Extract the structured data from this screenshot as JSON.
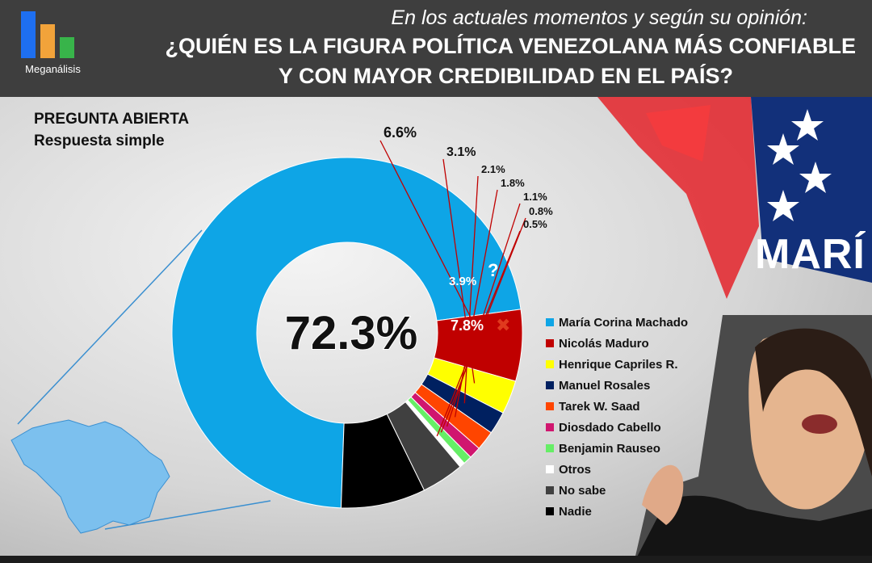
{
  "header": {
    "logo_text": "Meganálisis",
    "subtitle": "En los actuales momentos y según su opinión:",
    "title_line1": "¿QUIÉN ES LA FIGURA POLÍTICA VENEZOLANA MÁS CONFIABLE",
    "title_line2": "Y CON MAYOR CREDIBILIDAD EN EL PAÍS?"
  },
  "note": {
    "line1": "PREGUNTA  ABIERTA",
    "line2": "Respuesta simple"
  },
  "banner_text": "MARÍ",
  "chart_data": {
    "type": "pie",
    "categories": [
      "María Corina Machado",
      "Nicolás Maduro",
      "Henrique Capriles R.",
      "Manuel Rosales",
      "Tarek W. Saad",
      "Diosdado Cabello",
      "Benjamin Rauseo",
      "Otros",
      "No sabe",
      "Nadie"
    ],
    "values": [
      72.3,
      6.6,
      3.1,
      2.1,
      1.8,
      1.1,
      0.8,
      0.5,
      3.9,
      7.8
    ],
    "labels": [
      "72.3%",
      "6.6%",
      "3.1%",
      "2.1%",
      "1.8%",
      "1.1%",
      "0.8%",
      "0.5%",
      "3.9%",
      "7.8%"
    ],
    "colors": [
      "#0ea5e6",
      "#c00000",
      "#ffff00",
      "#002060",
      "#ff4500",
      "#d0166f",
      "#66ee66",
      "#ffffff",
      "#404040",
      "#000000"
    ],
    "legend_position": "right",
    "title": "",
    "markers": {
      "No sabe": "?",
      "Nadie": "✖"
    }
  }
}
